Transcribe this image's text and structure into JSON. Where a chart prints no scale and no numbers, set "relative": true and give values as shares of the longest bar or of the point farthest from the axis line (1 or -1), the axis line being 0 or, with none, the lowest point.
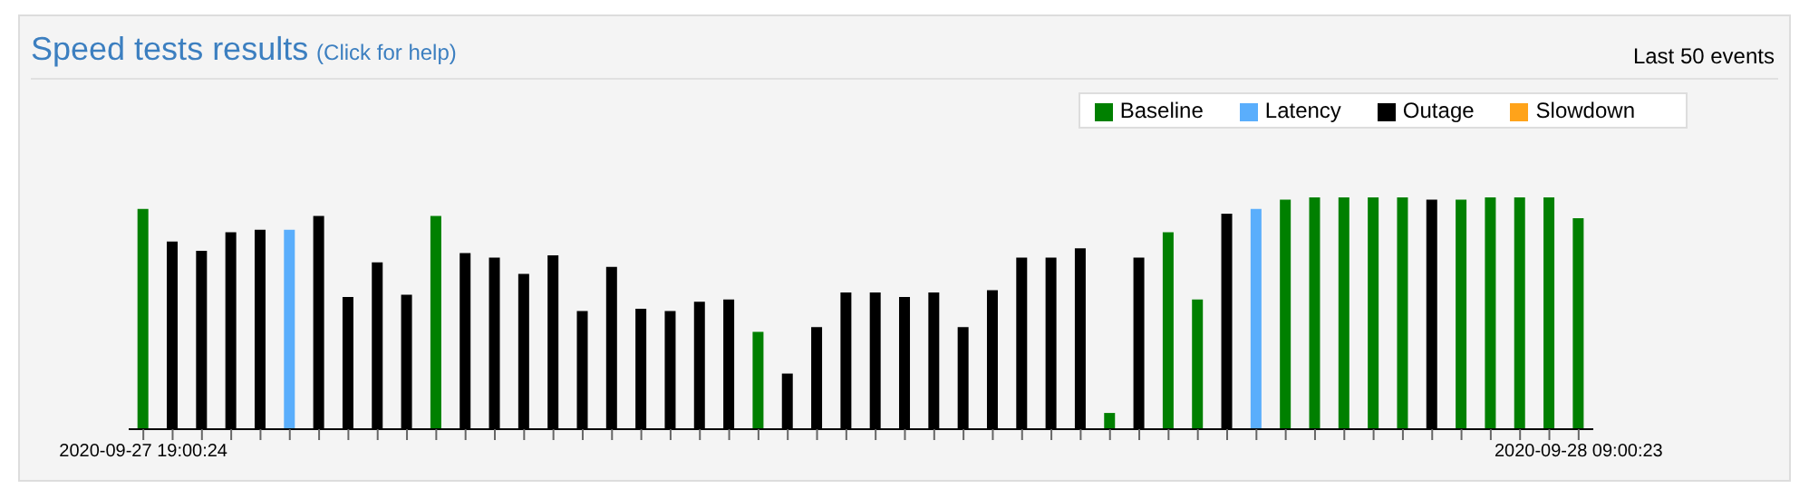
{
  "chart_data": {
    "type": "bar",
    "title": "Speed tests results",
    "subtitle": "(Click for help)",
    "annotations": [
      "Last 50 events"
    ],
    "relative": true,
    "stacked": true,
    "legend": "top right",
    "categories": [
      "2020-09-27 19:00:24",
      null,
      null,
      null,
      null,
      null,
      null,
      null,
      null,
      null,
      null,
      null,
      null,
      null,
      null,
      null,
      null,
      null,
      null,
      null,
      null,
      null,
      null,
      null,
      null,
      null,
      null,
      null,
      null,
      null,
      null,
      null,
      null,
      null,
      null,
      null,
      null,
      null,
      null,
      null,
      null,
      null,
      null,
      null,
      null,
      null,
      null,
      null,
      null,
      "2020-09-28 09:00:23"
    ],
    "series": [
      {
        "name": "Baseline",
        "color": "#008000",
        "values": [
          0.95,
          null,
          null,
          null,
          null,
          null,
          null,
          null,
          null,
          null,
          0.92,
          null,
          null,
          null,
          null,
          null,
          null,
          null,
          null,
          null,
          null,
          0.42,
          null,
          null,
          null,
          null,
          null,
          null,
          null,
          null,
          null,
          null,
          null,
          0.07,
          null,
          0.85,
          0.56,
          null,
          null,
          0.99,
          1,
          1,
          1,
          1,
          null,
          0.99,
          1,
          1,
          1,
          0.91
        ]
      },
      {
        "name": "Outage",
        "color": "#000000",
        "values": [
          null,
          0.81,
          0.77,
          0.85,
          0.86,
          null,
          0.92,
          0.57,
          0.72,
          0.58,
          null,
          0.76,
          0.74,
          0.67,
          0.75,
          0.51,
          0.7,
          0.52,
          0.51,
          0.55,
          0.56,
          null,
          0.24,
          0.44,
          0.59,
          0.59,
          0.57,
          0.59,
          0.44,
          0.6,
          0.74,
          0.74,
          0.78,
          null,
          0.74,
          null,
          null,
          0.93,
          null,
          null,
          null,
          null,
          null,
          null,
          0.99,
          null,
          null,
          null,
          null,
          null
        ]
      },
      {
        "name": "Latency",
        "color": "#5aaefc",
        "values": [
          null,
          null,
          null,
          null,
          null,
          0.86,
          null,
          null,
          null,
          null,
          null,
          null,
          null,
          null,
          null,
          null,
          null,
          null,
          null,
          null,
          null,
          null,
          null,
          null,
          null,
          null,
          null,
          null,
          null,
          null,
          null,
          null,
          null,
          null,
          null,
          null,
          null,
          null,
          0.95,
          null,
          null,
          null,
          null,
          null,
          null,
          null,
          null,
          null,
          null,
          null
        ]
      },
      {
        "name": "Slowdown",
        "color": "#ffa31a",
        "values": [
          null,
          null,
          null,
          null,
          null,
          null,
          null,
          null,
          null,
          null,
          null,
          null,
          null,
          null,
          null,
          null,
          null,
          null,
          null,
          null,
          null,
          null,
          null,
          null,
          null,
          null,
          null,
          null,
          null,
          null,
          null,
          null,
          null,
          null,
          null,
          null,
          null,
          null,
          null,
          null,
          null,
          null,
          null,
          null,
          null,
          null,
          null,
          null,
          null,
          null
        ]
      }
    ]
  }
}
